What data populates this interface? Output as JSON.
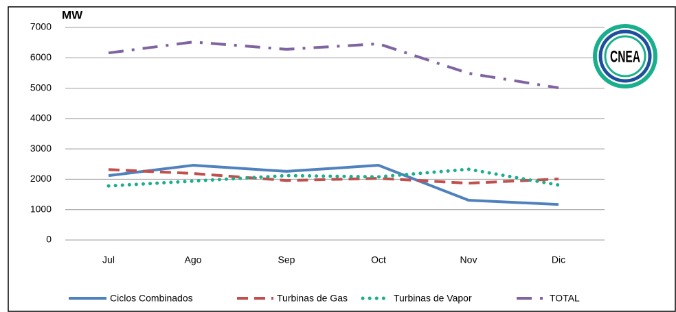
{
  "chart_data": {
    "type": "line",
    "y_label": "MW",
    "logo": "CNEA",
    "categories": [
      "Jul",
      "Ago",
      "Sep",
      "Oct",
      "Nov",
      "Dic"
    ],
    "series": [
      {
        "name": "Ciclos Combinados",
        "color": "#4f81bd",
        "style": "solid",
        "values": [
          2120,
          2460,
          2260,
          2460,
          1310,
          1170
        ]
      },
      {
        "name": "Turbinas de Gas",
        "color": "#c0504d",
        "style": "dash",
        "values": [
          2320,
          2190,
          1960,
          2030,
          1870,
          2010
        ]
      },
      {
        "name": "Turbinas de Vapor",
        "color": "#1aaf8c",
        "style": "dot",
        "values": [
          1780,
          1940,
          2120,
          2080,
          2330,
          1810
        ]
      },
      {
        "name": "TOTAL",
        "color": "#8064a2",
        "style": "dashdot",
        "values": [
          6160,
          6520,
          6280,
          6460,
          5490,
          5010
        ]
      }
    ],
    "ylim": [
      0,
      7000
    ],
    "yticks": [
      0,
      1000,
      2000,
      3000,
      4000,
      5000,
      6000,
      7000
    ],
    "grid": true,
    "legend": "bottom"
  }
}
